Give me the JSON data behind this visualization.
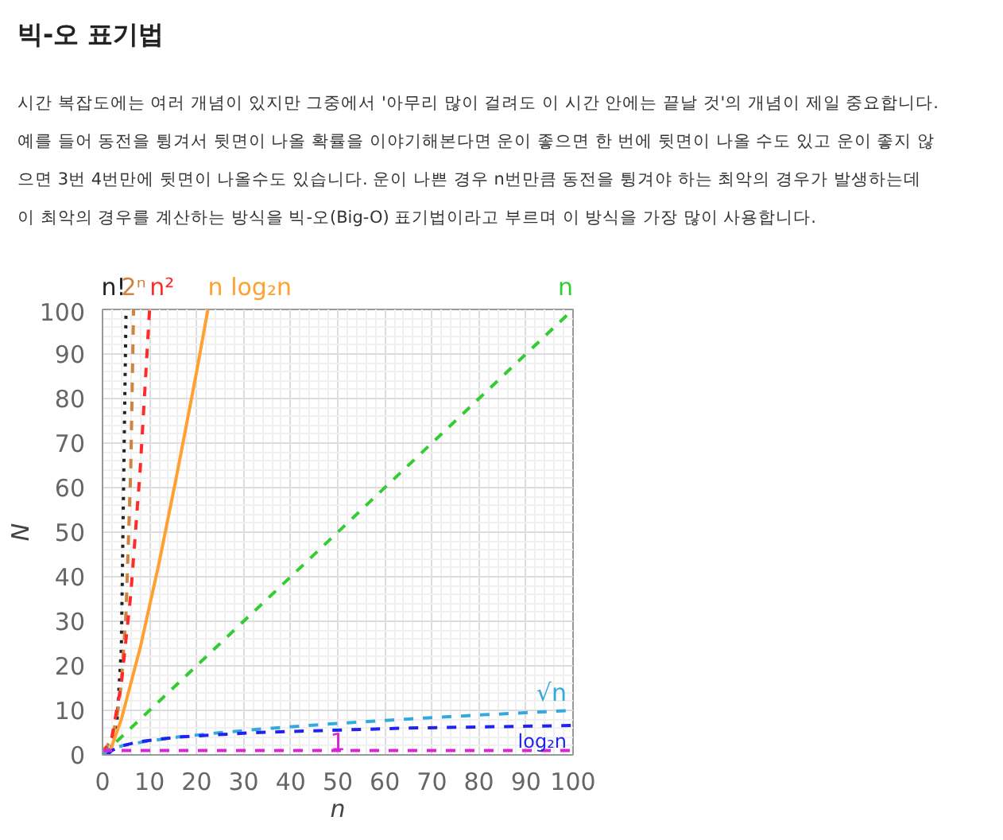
{
  "chart_data": {
    "type": "line",
    "title": "빅-오 표기법",
    "annotations": [
      "시간 복잡도에는 여러 개념이 있지만 그중에서 '아무리 많이 걸려도 이 시간 안에는 끝날 것'의 개념이 제일 중요합니다.",
      "예를 들어 동전을 튕겨서 뒷면이 나올 확률을 이야기해본다면 운이 좋으면 한 번에 뒷면이 나올 수도 있고 운이 좋지 않",
      "으면 3번 4번만에 뒷면이 나올수도 있습니다. 운이 나쁜 경우 n번만큼 동전을 튕겨야 하는 최악의 경우가 발생하는데",
      "이 최악의 경우를 계산하는 방식을 빅-오(Big-O) 표기법이라고 부르며 이 방식을 가장 많이 사용합니다."
    ],
    "xlabel": "n",
    "ylabel": "N",
    "xlim": [
      0,
      100
    ],
    "ylim": [
      0,
      100
    ],
    "xticks": [
      0,
      10,
      20,
      30,
      40,
      50,
      60,
      70,
      80,
      90,
      100
    ],
    "yticks": [
      0,
      10,
      20,
      30,
      40,
      50,
      60,
      70,
      80,
      90,
      100
    ],
    "grid": true,
    "series": [
      {
        "name": "n!",
        "color": "#222222",
        "line_style": "dotted",
        "x": [
          0,
          1,
          2,
          3,
          4,
          5
        ],
        "values": [
          1,
          1,
          2,
          6,
          24,
          100
        ]
      },
      {
        "name": "2ⁿ",
        "color": "#cd853f",
        "line_style": "dashed",
        "x": [
          0,
          1,
          2,
          3,
          4,
          5,
          6,
          6.6
        ],
        "values": [
          1,
          2,
          4,
          8,
          16,
          32,
          64,
          100
        ]
      },
      {
        "name": "n²",
        "color": "#ff2a2a",
        "line_style": "dashed",
        "x": [
          0,
          2,
          4,
          6,
          8,
          10
        ],
        "values": [
          0,
          4,
          16,
          36,
          64,
          100
        ]
      },
      {
        "name": "n log₂n",
        "color": "#ffa030",
        "line_style": "solid",
        "x": [
          1,
          2,
          4,
          8,
          12,
          16,
          20,
          22.4
        ],
        "values": [
          0,
          2,
          8,
          24,
          43,
          64,
          86,
          100
        ]
      },
      {
        "name": "n",
        "color": "#33cc33",
        "line_style": "dashed",
        "x": [
          0,
          100
        ],
        "values": [
          0,
          100
        ]
      },
      {
        "name": "√n",
        "color": "#33aadd",
        "line_style": "dashed",
        "x": [
          0,
          1,
          4,
          9,
          16,
          25,
          36,
          49,
          64,
          81,
          100
        ],
        "values": [
          0,
          1,
          2,
          3,
          4,
          5,
          6,
          7,
          8,
          9,
          10
        ]
      },
      {
        "name": "log₂n",
        "color": "#2222ee",
        "line_style": "dashed",
        "x": [
          1,
          2,
          4,
          8,
          16,
          32,
          64,
          100
        ],
        "values": [
          0,
          1,
          2,
          3,
          4,
          5,
          6,
          6.6
        ]
      },
      {
        "name": "1",
        "color": "#dd22dd",
        "line_style": "dashed",
        "x": [
          0,
          100
        ],
        "values": [
          1,
          1
        ]
      }
    ]
  }
}
